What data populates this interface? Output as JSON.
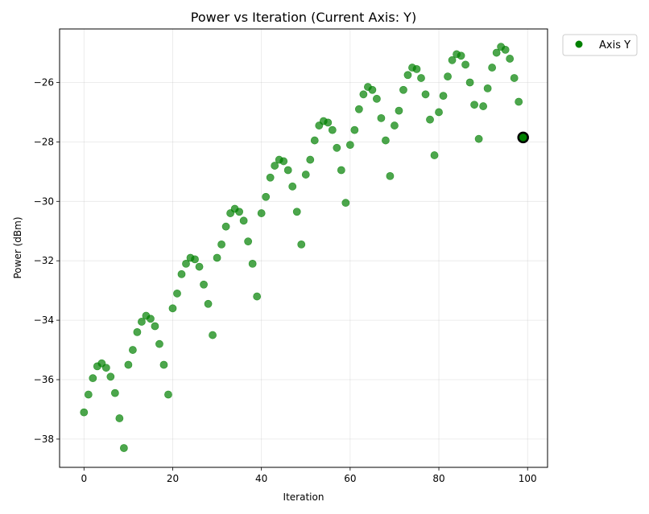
{
  "chart_data": {
    "type": "scatter",
    "title": "Power vs Iteration (Current Axis: Y)",
    "xlabel": "Iteration",
    "ylabel": "Power (dBm)",
    "xlim": [
      -5.5,
      104.5
    ],
    "ylim": [
      -38.95,
      -24.2
    ],
    "xticks": [
      0,
      20,
      40,
      60,
      80,
      100
    ],
    "yticks": [
      -38,
      -36,
      -34,
      -32,
      -30,
      -28,
      -26
    ],
    "xtick_labels": [
      "0",
      "20",
      "40",
      "60",
      "80",
      "100"
    ],
    "ytick_labels": [
      "−38",
      "−36",
      "−34",
      "−32",
      "−30",
      "−28",
      "−26"
    ],
    "grid": true,
    "legend_position": "outside-top-right",
    "series": [
      {
        "name": "Axis Y",
        "color": "#008000",
        "x": [
          0,
          1,
          2,
          3,
          4,
          5,
          6,
          7,
          8,
          9,
          10,
          11,
          12,
          13,
          14,
          15,
          16,
          17,
          18,
          19,
          20,
          21,
          22,
          23,
          24,
          25,
          26,
          27,
          28,
          29,
          30,
          31,
          32,
          33,
          34,
          35,
          36,
          37,
          38,
          39,
          40,
          41,
          42,
          43,
          44,
          45,
          46,
          47,
          48,
          49,
          50,
          51,
          52,
          53,
          54,
          55,
          56,
          57,
          58,
          59,
          60,
          61,
          62,
          63,
          64,
          65,
          66,
          67,
          68,
          69,
          70,
          71,
          72,
          73,
          74,
          75,
          76,
          77,
          78,
          79,
          80,
          81,
          82,
          83,
          84,
          85,
          86,
          87,
          88,
          89,
          90,
          91,
          92,
          93,
          94,
          95,
          96,
          97,
          98,
          99
        ],
        "y": [
          -37.1,
          -36.5,
          -35.95,
          -35.55,
          -35.45,
          -35.6,
          -35.9,
          -36.45,
          -37.3,
          -38.3,
          -35.5,
          -35.0,
          -34.4,
          -34.05,
          -33.85,
          -33.95,
          -34.2,
          -34.8,
          -35.5,
          -36.5,
          -33.6,
          -33.1,
          -32.45,
          -32.1,
          -31.9,
          -31.95,
          -32.2,
          -32.8,
          -33.45,
          -34.5,
          -31.9,
          -31.45,
          -30.85,
          -30.4,
          -30.25,
          -30.35,
          -30.65,
          -31.35,
          -32.1,
          -33.2,
          -30.4,
          -29.85,
          -29.2,
          -28.8,
          -28.6,
          -28.65,
          -28.95,
          -29.5,
          -30.35,
          -31.45,
          -29.1,
          -28.6,
          -27.95,
          -27.45,
          -27.3,
          -27.35,
          -27.6,
          -28.2,
          -28.95,
          -30.05,
          -28.1,
          -27.6,
          -26.9,
          -26.4,
          -26.15,
          -26.25,
          -26.55,
          -27.2,
          -27.95,
          -29.15,
          -27.45,
          -26.95,
          -26.25,
          -25.75,
          -25.5,
          -25.55,
          -25.85,
          -26.4,
          -27.25,
          -28.45,
          -27.0,
          -26.45,
          -25.8,
          -25.25,
          -25.05,
          -25.1,
          -25.4,
          -26.0,
          -26.75,
          -27.9,
          -26.8,
          -26.2,
          -25.5,
          -25.0,
          -24.8,
          -24.9,
          -25.2,
          -25.85,
          -26.65,
          -27.85
        ]
      }
    ],
    "highlight": {
      "x": 99,
      "y": -27.85,
      "edge_color": "#000000"
    },
    "marker_alpha": 0.7
  }
}
